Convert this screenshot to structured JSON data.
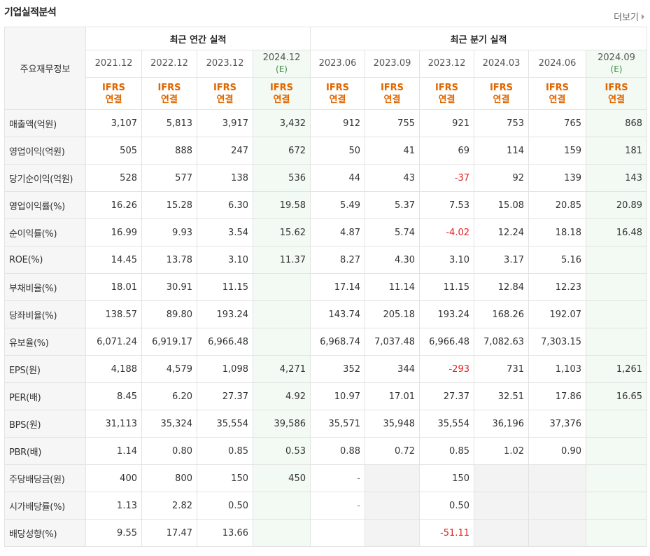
{
  "header": {
    "title": "기업실적분석",
    "more_label": "더보기"
  },
  "table": {
    "row_header_label": "주요재무정보",
    "groups": {
      "annual": "최근 연간 실적",
      "quarterly": "최근 분기 실적"
    },
    "periods": [
      {
        "label": "2021.12",
        "est": ""
      },
      {
        "label": "2022.12",
        "est": ""
      },
      {
        "label": "2023.12",
        "est": ""
      },
      {
        "label": "2024.12",
        "est": "(E)"
      },
      {
        "label": "2023.06",
        "est": ""
      },
      {
        "label": "2023.09",
        "est": ""
      },
      {
        "label": "2023.12",
        "est": ""
      },
      {
        "label": "2024.03",
        "est": ""
      },
      {
        "label": "2024.06",
        "est": ""
      },
      {
        "label": "2024.09",
        "est": "(E)"
      }
    ],
    "basis_line1": "IFRS",
    "basis_line2": "연결",
    "rows": [
      {
        "label": "매출액(억원)",
        "values": [
          "3,107",
          "5,813",
          "3,917",
          "3,432",
          "912",
          "755",
          "921",
          "753",
          "765",
          "868"
        ]
      },
      {
        "label": "영업이익(억원)",
        "values": [
          "505",
          "888",
          "247",
          "672",
          "50",
          "41",
          "69",
          "114",
          "159",
          "181"
        ]
      },
      {
        "label": "당기순이익(억원)",
        "values": [
          "528",
          "577",
          "138",
          "536",
          "44",
          "43",
          "-37",
          "92",
          "139",
          "143"
        ]
      },
      {
        "label": "영업이익률(%)",
        "values": [
          "16.26",
          "15.28",
          "6.30",
          "19.58",
          "5.49",
          "5.37",
          "7.53",
          "15.08",
          "20.85",
          "20.89"
        ]
      },
      {
        "label": "순이익률(%)",
        "values": [
          "16.99",
          "9.93",
          "3.54",
          "15.62",
          "4.87",
          "5.74",
          "-4.02",
          "12.24",
          "18.18",
          "16.48"
        ]
      },
      {
        "label": "ROE(%)",
        "values": [
          "14.45",
          "13.78",
          "3.10",
          "11.37",
          "8.27",
          "4.30",
          "3.10",
          "3.17",
          "5.16",
          ""
        ]
      },
      {
        "label": "부채비율(%)",
        "values": [
          "18.01",
          "30.91",
          "11.15",
          "",
          "17.14",
          "11.14",
          "11.15",
          "12.84",
          "12.23",
          ""
        ]
      },
      {
        "label": "당좌비율(%)",
        "values": [
          "138.57",
          "89.80",
          "193.24",
          "",
          "143.74",
          "205.18",
          "193.24",
          "168.26",
          "192.07",
          ""
        ]
      },
      {
        "label": "유보율(%)",
        "values": [
          "6,071.24",
          "6,919.17",
          "6,966.48",
          "",
          "6,968.74",
          "7,037.48",
          "6,966.48",
          "7,082.63",
          "7,303.15",
          ""
        ]
      },
      {
        "label": "EPS(원)",
        "values": [
          "4,188",
          "4,579",
          "1,098",
          "4,271",
          "352",
          "344",
          "-293",
          "731",
          "1,103",
          "1,261"
        ]
      },
      {
        "label": "PER(배)",
        "values": [
          "8.45",
          "6.20",
          "27.37",
          "4.92",
          "10.97",
          "17.01",
          "27.37",
          "32.51",
          "17.86",
          "16.65"
        ]
      },
      {
        "label": "BPS(원)",
        "values": [
          "31,113",
          "35,324",
          "35,554",
          "39,586",
          "35,571",
          "35,948",
          "35,554",
          "36,196",
          "37,376",
          ""
        ]
      },
      {
        "label": "PBR(배)",
        "values": [
          "1.14",
          "0.80",
          "0.85",
          "0.53",
          "0.88",
          "0.72",
          "0.85",
          "1.02",
          "0.90",
          ""
        ]
      },
      {
        "label": "주당배당금(원)",
        "values": [
          "400",
          "800",
          "150",
          "450",
          "-",
          "",
          "150",
          "",
          "",
          ""
        ]
      },
      {
        "label": "시가배당률(%)",
        "values": [
          "1.13",
          "2.82",
          "0.50",
          "",
          "-",
          "",
          "0.50",
          "",
          "",
          ""
        ]
      },
      {
        "label": "배당성향(%)",
        "values": [
          "9.55",
          "17.47",
          "13.66",
          "",
          "",
          "",
          "-51.11",
          "",
          "",
          ""
        ]
      }
    ],
    "separator_after": [
      2,
      5,
      8,
      12
    ],
    "gray_cells": {
      "13": [
        5,
        7,
        8
      ],
      "14": [
        5,
        7,
        8
      ],
      "15": [
        5,
        7,
        8
      ]
    },
    "colors": {
      "negative": "#e02020",
      "ifrs": "#e06600",
      "estimate_bg": "#f3f9f3",
      "estimate_text": "#3a8f46"
    }
  }
}
